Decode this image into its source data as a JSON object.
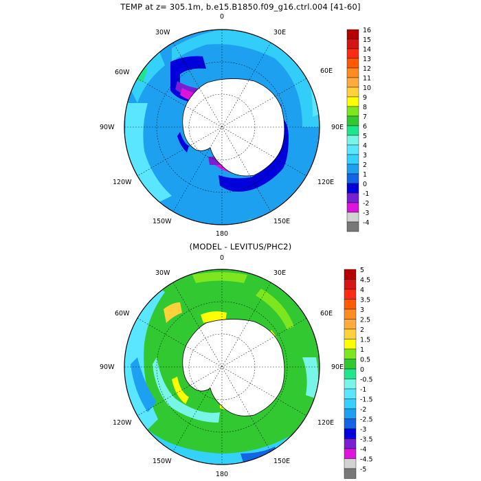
{
  "top_panel": {
    "title": "TEMP at z= 305.1m, b.e15.B1850.f09_g16.ctrl.004 [41-60]",
    "longitude_labels": {
      "lon0": "0",
      "lon30E": "30E",
      "lon60E": "60E",
      "lon90E": "90E",
      "lon120E": "120E",
      "lon150E": "150E",
      "lon180": "180",
      "lon150W": "150W",
      "lon120W": "120W",
      "lon90W": "90W",
      "lon60W": "60W",
      "lon30W": "30W"
    },
    "colorbar": {
      "labels": [
        "16",
        "15",
        "14",
        "13",
        "12",
        "11",
        "10",
        "9",
        "8",
        "7",
        "6",
        "5",
        "4",
        "3",
        "2",
        "1",
        "0",
        "-1",
        "-2",
        "-3",
        "-4"
      ],
      "colors": [
        "#b40000",
        "#d71414",
        "#ff2a14",
        "#ff5a00",
        "#ff8c1e",
        "#ffaa3c",
        "#ffd23c",
        "#ffff00",
        "#7ee61e",
        "#32c832",
        "#1ee68c",
        "#78f5e6",
        "#5ae6ff",
        "#34d2fa",
        "#1ea0f0",
        "#1464e6",
        "#0000dc",
        "#7a1ed2",
        "#dc14dc",
        "#d2d2d2",
        "#787878"
      ]
    }
  },
  "bottom_panel": {
    "title": "(MODEL - LEVITUS/PHC2)",
    "longitude_labels": {
      "lon0": "0",
      "lon30E": "30E",
      "lon60E": "60E",
      "lon90E": "90E",
      "lon120E": "120E",
      "lon150E": "150E",
      "lon180": "180",
      "lon150W": "150W",
      "lon120W": "120W",
      "lon90W": "90W",
      "lon60W": "60W",
      "lon30W": "30W"
    },
    "colorbar": {
      "labels": [
        "5",
        "4.5",
        "4",
        "3.5",
        "3",
        "2.5",
        "2",
        "1.5",
        "1",
        "0.5",
        "0",
        "-0.5",
        "-1",
        "-1.5",
        "-2",
        "-2.5",
        "-3",
        "-3.5",
        "-4",
        "-4.5",
        "-5"
      ],
      "colors": [
        "#b40000",
        "#d71414",
        "#ff2a14",
        "#ff5a00",
        "#ff8c1e",
        "#ffaa3c",
        "#ffd23c",
        "#ffff00",
        "#7ee61e",
        "#32c832",
        "#1ee68c",
        "#78f5e6",
        "#5ae6ff",
        "#34d2fa",
        "#1ea0f0",
        "#1464e6",
        "#0000dc",
        "#7a1ed2",
        "#dc14dc",
        "#d2d2d2",
        "#787878"
      ]
    }
  }
}
